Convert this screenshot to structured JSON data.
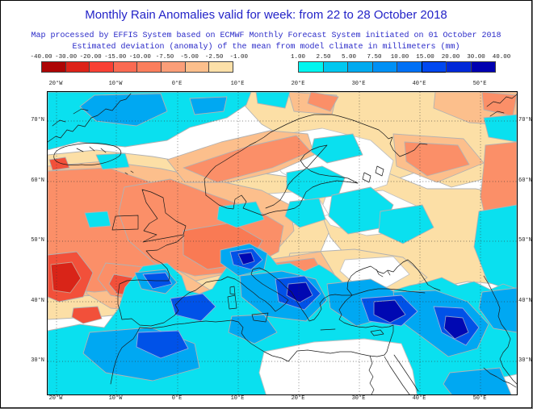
{
  "header": {
    "title": "Monthly Rain Anomalies valid for week: from 22 to 28 October 2018",
    "subtitle1": "Map processed by EFFIS System based on ECMWF Monthly Forecast System initiated on 01 October 2018",
    "subtitle2": "Estimated deviation (anomaly) of the mean from model climate in millimeters (mm)"
  },
  "legend": {
    "negative": {
      "tick_labels": [
        "-40.00",
        "-30.00",
        "-20.00",
        "-15.00",
        "-10.00",
        "-7.50",
        "-5.00",
        "-2.50",
        "-1.00"
      ],
      "cell_colors": [
        "#ad0505",
        "#dd2218",
        "#f94034",
        "#fa6a52",
        "#fb7e5c",
        "#fb9e78",
        "#fcbf8c",
        "#fce0a8"
      ]
    },
    "positive": {
      "tick_labels": [
        "1.00",
        "2.50",
        "5.00",
        "7.50",
        "10.00",
        "15.00",
        "20.00",
        "30.00",
        "40.00"
      ],
      "cell_colors": [
        "#00f5f0",
        "#00c8f0",
        "#00aaf0",
        "#0090f5",
        "#0070f5",
        "#0048f0",
        "#0028d8",
        "#0000b0"
      ],
      "highlight_cell_index": 5
    },
    "units": "mm"
  },
  "map_axes": {
    "lon_labels": [
      "20°W",
      "10°W",
      "0°E",
      "10°E",
      "20°E",
      "30°E",
      "40°E",
      "50°E"
    ],
    "lat_labels": [
      "70°N",
      "60°N",
      "50°N",
      "40°N",
      "30°N"
    ]
  },
  "colors": {
    "heading_blue": "#2323c8",
    "tick_text": "#222222",
    "contour_gray": "#b2b2b2",
    "coastline": "#1a1a1a"
  }
}
